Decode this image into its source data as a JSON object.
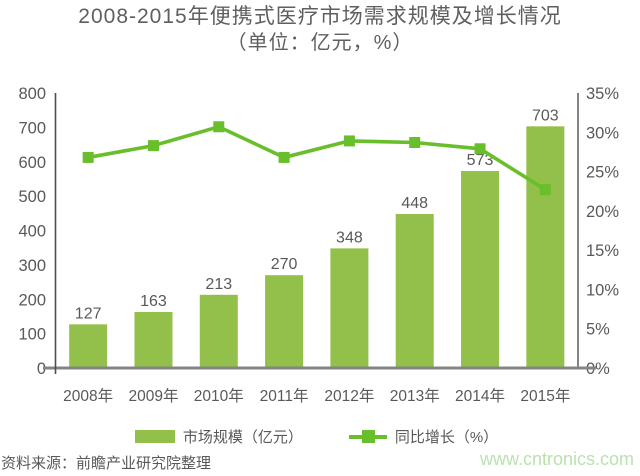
{
  "title": {
    "line1": "2008-2015年便携式医疗市场需求规模及增长情况",
    "line2": "（单位：亿元，%）"
  },
  "legend": {
    "bar_label": "市场规模（亿元）",
    "line_label": "同比增长（%）"
  },
  "footer": {
    "source": "资料来源：前瞻产业研究院整理",
    "website": "www.cntronics.com"
  },
  "colors": {
    "bar": "#92c04a",
    "line": "#69be2b",
    "axis_dark": "#4d4d4d",
    "axis_gray": "#848484",
    "text": "#595959",
    "website": "#b9e2af"
  },
  "chart_data": {
    "type": "bar+line",
    "title": "2008-2015年便携式医疗市场需求规模及增长情况（单位：亿元，%）",
    "categories": [
      "2008年",
      "2009年",
      "2010年",
      "2011年",
      "2012年",
      "2013年",
      "2014年",
      "2015年"
    ],
    "series": [
      {
        "name": "市场规模（亿元）",
        "type": "bar",
        "axis": "left",
        "values": [
          127,
          163,
          213,
          270,
          348,
          448,
          573,
          703
        ],
        "labels": [
          "127",
          "163",
          "213",
          "270",
          "348",
          "448",
          "573",
          "703"
        ]
      },
      {
        "name": "同比增长（%）",
        "type": "line",
        "axis": "right",
        "values": [
          26.8,
          28.3,
          30.7,
          26.8,
          28.9,
          28.7,
          27.9,
          22.7
        ]
      }
    ],
    "left_axis": {
      "min": 0,
      "max": 800,
      "step": 100,
      "ticks": [
        "0",
        "100",
        "200",
        "300",
        "400",
        "500",
        "600",
        "700",
        "800"
      ]
    },
    "right_axis": {
      "min": 0,
      "max": 35,
      "step": 5,
      "ticks": [
        "0%",
        "5%",
        "10%",
        "15%",
        "20%",
        "25%",
        "30%",
        "35%"
      ]
    },
    "grid": false,
    "bar_labels_visible": true,
    "legend_position": "bottom"
  }
}
